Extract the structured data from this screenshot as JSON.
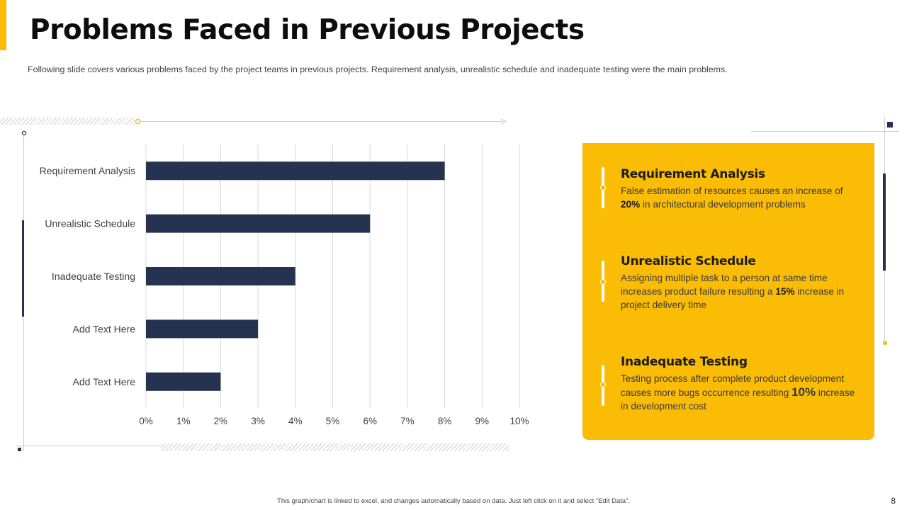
{
  "title": "Problems Faced in Previous Projects",
  "subtitle": "Following slide covers various problems faced by the project teams in previous projects. Requirement analysis, unrealistic schedule and inadequate testing were the main problems.",
  "colors": {
    "accent": "#fbbc05",
    "bar": "#263350",
    "panel": "#fbbc05",
    "navy": "#263350"
  },
  "chart_data": {
    "type": "bar",
    "orientation": "horizontal",
    "categories": [
      "Requirement Analysis",
      "Unrealistic Schedule",
      "Inadequate Testing",
      "Add Text Here",
      "Add Text Here"
    ],
    "values": [
      8,
      6,
      4,
      3,
      2
    ],
    "xlim": [
      0,
      10
    ],
    "xticks": [
      "0%",
      "1%",
      "2%",
      "3%",
      "4%",
      "5%",
      "6%",
      "7%",
      "8%",
      "9%",
      "10%"
    ],
    "unit": "%",
    "grid": true
  },
  "panel": {
    "items": [
      {
        "title": "Requirement Analysis",
        "text_before": "False estimation of resources causes an increase of ",
        "highlight": "20%",
        "text_after": " in architectural development  problems"
      },
      {
        "title": "Unrealistic Schedule",
        "text_before": "Assigning multiple task to  a person at same time increases product failure resulting a ",
        "highlight": "15%",
        "text_after": " increase in project delivery time"
      },
      {
        "title": "Inadequate Testing",
        "text_before": "Testing process after complete  product development  causes more bugs occurrence resulting ",
        "highlight": "10%",
        "text_after": " increase in development  cost"
      }
    ]
  },
  "footer": "This graph/chart is linked to excel, and changes automatically based on data. Just left click on it and select “Edit Data”.",
  "page_number": "8"
}
